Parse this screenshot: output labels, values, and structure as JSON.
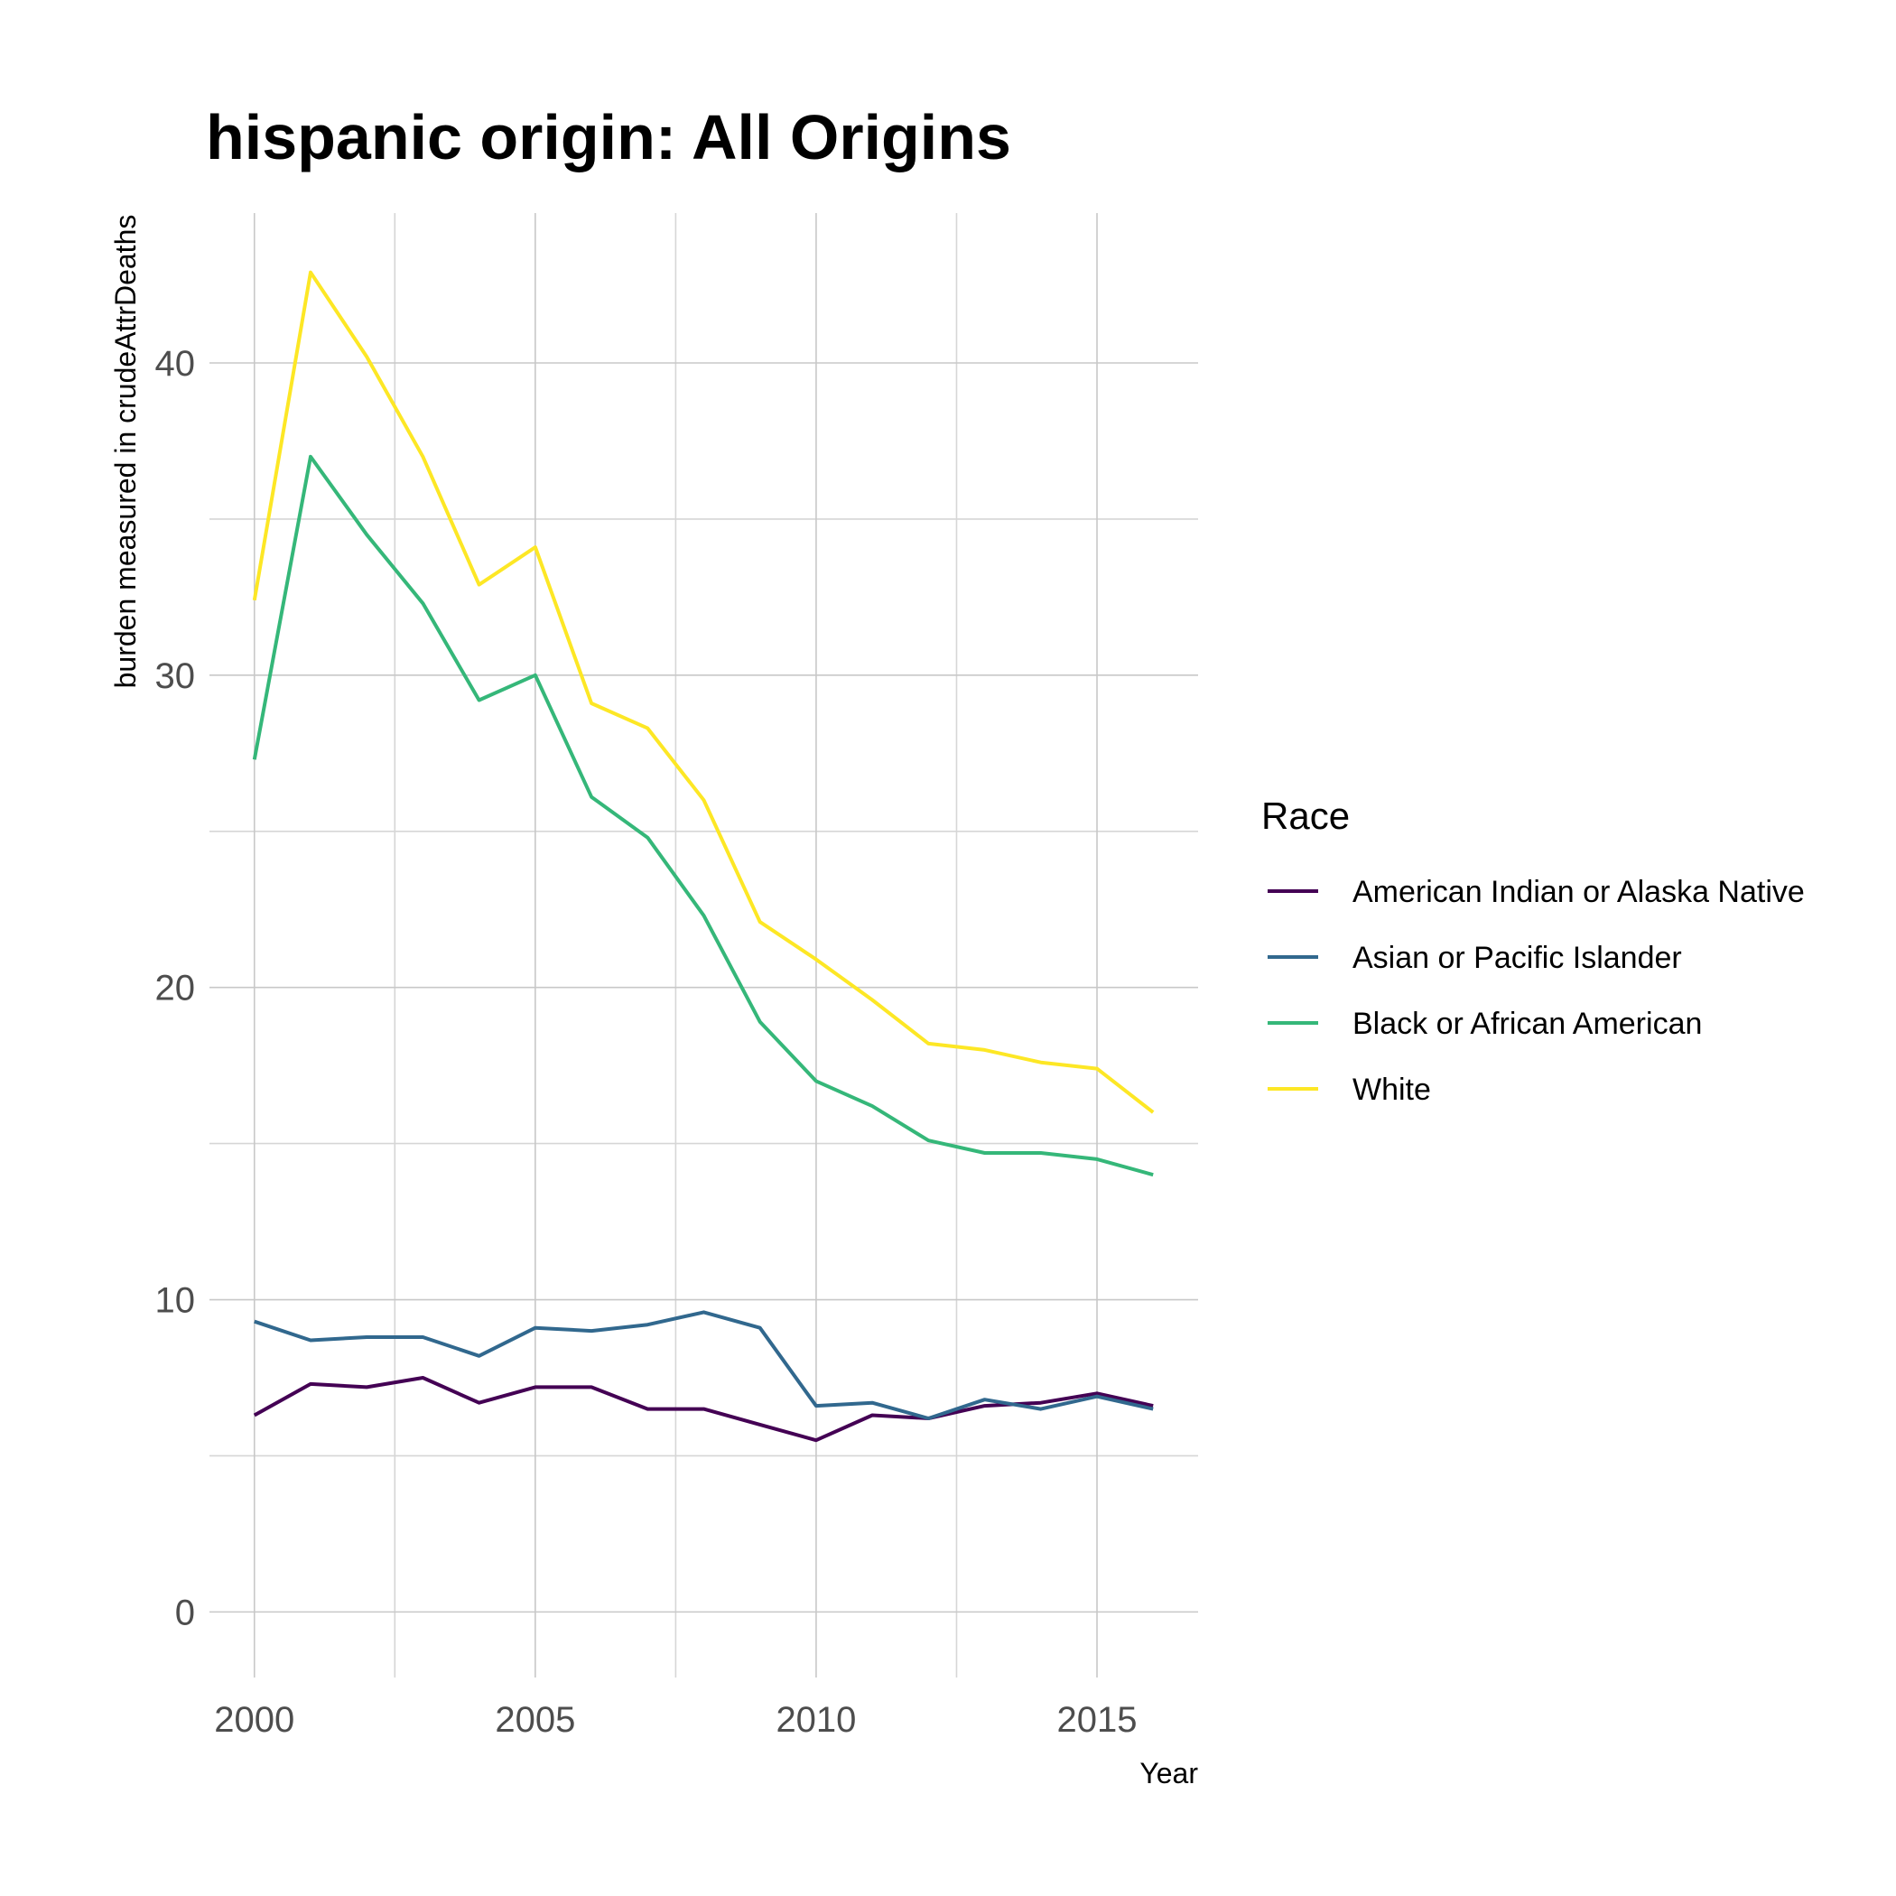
{
  "chart_data": {
    "type": "line",
    "title": "hispanic origin: All Origins",
    "xlabel": "Year",
    "ylabel": "burden measured in crudeAttrDeaths",
    "x": [
      2000,
      2001,
      2002,
      2003,
      2004,
      2005,
      2006,
      2007,
      2008,
      2009,
      2010,
      2011,
      2012,
      2013,
      2014,
      2015,
      2016
    ],
    "xlim": [
      1999.2,
      2016.8
    ],
    "ylim": [
      -2.1,
      44.8
    ],
    "x_ticks": [
      "2000",
      "2005",
      "2010",
      "2015"
    ],
    "y_ticks": [
      "0",
      "10",
      "20",
      "30",
      "40"
    ],
    "grid": true,
    "legend": {
      "title": "Race",
      "position": "right"
    },
    "series": [
      {
        "name": "American Indian or Alaska Native",
        "color": "#440154",
        "values": [
          6.3,
          7.3,
          7.2,
          7.5,
          6.7,
          7.2,
          7.2,
          6.5,
          6.5,
          6.0,
          5.5,
          6.3,
          6.2,
          6.6,
          6.7,
          7.0,
          6.6
        ]
      },
      {
        "name": "Asian or Pacific Islander",
        "color": "#31688E",
        "values": [
          9.3,
          8.7,
          8.8,
          8.8,
          8.2,
          9.1,
          9.0,
          9.2,
          9.6,
          9.1,
          6.6,
          6.7,
          6.2,
          6.8,
          6.5,
          6.9,
          6.5
        ]
      },
      {
        "name": "Black or African American",
        "color": "#35B779",
        "values": [
          27.3,
          37.0,
          34.5,
          32.3,
          29.2,
          30.0,
          26.1,
          24.8,
          22.3,
          18.9,
          17.0,
          16.2,
          15.1,
          14.7,
          14.7,
          14.5,
          14.0
        ]
      },
      {
        "name": "White",
        "color": "#FDE725",
        "values": [
          32.4,
          42.9,
          40.2,
          37.0,
          32.9,
          34.1,
          29.1,
          28.3,
          26.0,
          22.1,
          20.9,
          19.6,
          18.2,
          18.0,
          17.6,
          17.4,
          16.0
        ]
      }
    ]
  }
}
